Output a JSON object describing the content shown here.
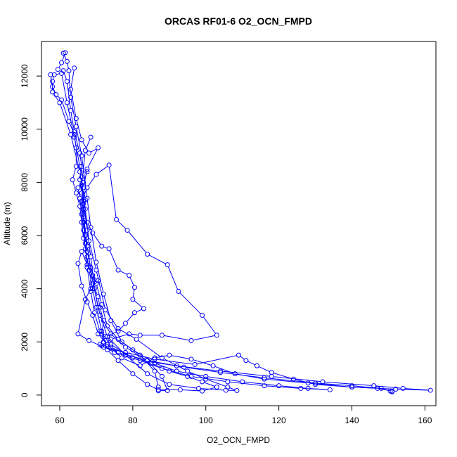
{
  "chart_data": {
    "type": "line",
    "title": "ORCAS RF01-6 O2_OCN_FMPD",
    "xlabel": "O2_OCN_FMPD",
    "ylabel": "Altitude (m)",
    "xlim": [
      55,
      163
    ],
    "ylim": [
      -400,
      13300
    ],
    "xticks": [
      60,
      80,
      100,
      120,
      140,
      160
    ],
    "yticks": [
      0,
      2000,
      4000,
      6000,
      8000,
      10000,
      12000
    ],
    "grid": false,
    "marker": "open-circle",
    "color": "#0000ff",
    "series": [
      {
        "points": [
          [
            59.5,
            12250
          ],
          [
            60.5,
            12500
          ],
          [
            61.5,
            12880
          ],
          [
            61.0,
            12860
          ],
          [
            62.0,
            12550
          ],
          [
            62.5,
            12200
          ],
          [
            63.0,
            11200
          ],
          [
            64.5,
            10100
          ],
          [
            66.0,
            9000
          ],
          [
            67.5,
            7400
          ],
          [
            68.5,
            6300
          ],
          [
            70.0,
            5000
          ],
          [
            72.0,
            3800
          ],
          [
            74.0,
            2800
          ],
          [
            77.0,
            2000
          ],
          [
            82.0,
            1500
          ],
          [
            86.0,
            900
          ],
          [
            87.0,
            300
          ],
          [
            87.0,
            160
          ],
          [
            89.5,
            170
          ],
          [
            88.0,
            700
          ],
          [
            84.0,
            1300
          ],
          [
            78.0,
            1800
          ],
          [
            74.0,
            2300
          ],
          [
            71.0,
            3000
          ],
          [
            69.5,
            4000
          ],
          [
            68.5,
            5200
          ],
          [
            67.5,
            6200
          ],
          [
            66.5,
            7300
          ],
          [
            66.0,
            8200
          ],
          [
            65.5,
            8600
          ],
          [
            64.0,
            9700
          ],
          [
            62.0,
            11000
          ],
          [
            60.5,
            12100
          ],
          [
            58.5,
            12050
          ],
          [
            58.0,
            11800
          ],
          [
            58.0,
            11400
          ],
          [
            60.0,
            11000
          ],
          [
            63.0,
            9800
          ],
          [
            65.5,
            8400
          ],
          [
            67.0,
            7000
          ],
          [
            68.0,
            5800
          ],
          [
            70.0,
            4700
          ],
          [
            72.5,
            3200
          ],
          [
            76.0,
            2500
          ],
          [
            81.0,
            2100
          ],
          [
            88.0,
            1400
          ],
          [
            95.0,
            900
          ],
          [
            100.0,
            600
          ],
          [
            106.0,
            300
          ],
          [
            108.5,
            170
          ],
          [
            105.5,
            180
          ],
          [
            98.0,
            250
          ],
          [
            90.0,
            400
          ],
          [
            84.0,
            800
          ],
          [
            78.0,
            1500
          ],
          [
            73.0,
            2200
          ],
          [
            70.5,
            3300
          ],
          [
            69.0,
            4300
          ],
          [
            67.5,
            5600
          ],
          [
            66.5,
            6800
          ],
          [
            66.0,
            7900
          ],
          [
            67.0,
            9200
          ],
          [
            68.5,
            9700
          ]
        ]
      },
      {
        "points": [
          [
            61.0,
            12200
          ],
          [
            62.0,
            11800
          ],
          [
            63.0,
            10700
          ],
          [
            64.0,
            9900
          ],
          [
            65.5,
            9100
          ],
          [
            66.0,
            8600
          ],
          [
            65.5,
            8100
          ],
          [
            66.0,
            7600
          ],
          [
            66.5,
            7200
          ],
          [
            66.5,
            6700
          ],
          [
            67.0,
            6000
          ],
          [
            67.5,
            5400
          ],
          [
            68.5,
            4800
          ],
          [
            70.0,
            4200
          ],
          [
            71.5,
            3400
          ],
          [
            73.0,
            2600
          ],
          [
            76.0,
            2100
          ],
          [
            80.0,
            1700
          ],
          [
            86.0,
            1200
          ],
          [
            92.0,
            900
          ],
          [
            100.0,
            700
          ],
          [
            110.0,
            500
          ],
          [
            120.0,
            350
          ],
          [
            128.0,
            250
          ],
          [
            134.0,
            200
          ],
          [
            126.0,
            250
          ],
          [
            116.0,
            350
          ],
          [
            106.0,
            500
          ],
          [
            96.0,
            700
          ],
          [
            88.0,
            1000
          ],
          [
            80.0,
            1400
          ],
          [
            74.0,
            1900
          ],
          [
            71.0,
            2400
          ],
          [
            69.5,
            3100
          ],
          [
            68.5,
            3900
          ],
          [
            67.5,
            4800
          ],
          [
            67.0,
            5700
          ],
          [
            66.5,
            6500
          ],
          [
            66.0,
            7300
          ],
          [
            67.5,
            7800
          ],
          [
            70.0,
            8300
          ],
          [
            73.5,
            8650
          ],
          [
            75.5,
            6600
          ],
          [
            78.5,
            6200
          ],
          [
            84.0,
            5300
          ],
          [
            89.5,
            4900
          ],
          [
            92.5,
            3900
          ],
          [
            99.0,
            3000
          ],
          [
            103.0,
            2250
          ],
          [
            96.0,
            2050
          ],
          [
            88.0,
            2250
          ],
          [
            82.0,
            2250
          ],
          [
            79.0,
            2300
          ],
          [
            74.0,
            2100
          ],
          [
            71.5,
            1850
          ],
          [
            76.0,
            1600
          ],
          [
            84.0,
            1300
          ],
          [
            94.0,
            1050
          ],
          [
            104.0,
            850
          ],
          [
            116.0,
            650
          ],
          [
            130.0,
            450
          ],
          [
            140.0,
            350
          ],
          [
            148.0,
            250
          ],
          [
            150.5,
            150
          ],
          [
            151.0,
            120
          ]
        ]
      },
      {
        "points": [
          [
            64.0,
            12300
          ],
          [
            63.0,
            11500
          ],
          [
            64.5,
            10400
          ],
          [
            66.0,
            9600
          ],
          [
            68.0,
            9100
          ],
          [
            70.5,
            9300
          ],
          [
            67.5,
            8500
          ],
          [
            66.5,
            7800
          ],
          [
            67.0,
            7350
          ],
          [
            66.5,
            7000
          ],
          [
            67.5,
            6500
          ],
          [
            69.0,
            6100
          ],
          [
            71.5,
            5600
          ],
          [
            73.5,
            5500
          ],
          [
            76.0,
            4700
          ],
          [
            79.0,
            4500
          ],
          [
            80.5,
            4050
          ],
          [
            80.0,
            3600
          ],
          [
            83.0,
            3250
          ],
          [
            80.5,
            3100
          ],
          [
            78.0,
            2700
          ],
          [
            76.0,
            2400
          ],
          [
            72.5,
            2200
          ],
          [
            71.0,
            1900
          ],
          [
            75.0,
            1600
          ],
          [
            82.0,
            1300
          ],
          [
            92.0,
            1100
          ],
          [
            104.0,
            900
          ],
          [
            118.0,
            700
          ],
          [
            132.0,
            500
          ],
          [
            146.0,
            350
          ],
          [
            154.0,
            250
          ],
          [
            161.5,
            180
          ],
          [
            152.0,
            220
          ],
          [
            140.0,
            300
          ],
          [
            128.0,
            450
          ],
          [
            116.0,
            600
          ],
          [
            108.0,
            800
          ],
          [
            102.0,
            1100
          ],
          [
            96.0,
            1350
          ],
          [
            90.0,
            1500
          ],
          [
            86.0,
            1400
          ],
          [
            82.0,
            1100
          ],
          [
            77.0,
            1400
          ],
          [
            73.0,
            1900
          ],
          [
            70.5,
            2300
          ],
          [
            69.0,
            3000
          ],
          [
            67.5,
            3500
          ],
          [
            66.0,
            4100
          ],
          [
            65.0,
            4950
          ],
          [
            66.0,
            5400
          ],
          [
            67.5,
            4900
          ],
          [
            69.0,
            4500
          ],
          [
            70.5,
            4300
          ],
          [
            68.5,
            4000
          ],
          [
            67.0,
            3600
          ],
          [
            65.0,
            2300
          ],
          [
            68.0,
            2050
          ],
          [
            72.0,
            1800
          ],
          [
            78.0,
            1600
          ],
          [
            86.0,
            1350
          ],
          [
            97.0,
            1150
          ],
          [
            109.0,
            1500
          ],
          [
            111.0,
            1300
          ],
          [
            114.0,
            1100
          ],
          [
            118.0,
            850
          ],
          [
            124.0,
            600
          ],
          [
            130.0,
            400
          ],
          [
            140.0,
            300
          ],
          [
            147.0,
            250
          ],
          [
            151.0,
            150
          ]
        ]
      },
      {
        "points": [
          [
            57.5,
            12050
          ],
          [
            58.0,
            11600
          ],
          [
            59.0,
            11300
          ],
          [
            60.5,
            11100
          ],
          [
            62.5,
            10300
          ],
          [
            64.0,
            9800
          ],
          [
            64.5,
            9300
          ],
          [
            64.5,
            8600
          ],
          [
            63.5,
            8100
          ],
          [
            64.5,
            7600
          ],
          [
            65.5,
            7100
          ],
          [
            66.0,
            6500
          ],
          [
            66.5,
            5900
          ],
          [
            67.5,
            5200
          ],
          [
            68.0,
            4700
          ],
          [
            69.0,
            4500
          ],
          [
            69.0,
            4200
          ],
          [
            70.5,
            3700
          ],
          [
            71.0,
            3300
          ],
          [
            72.0,
            2800
          ],
          [
            71.5,
            2300
          ],
          [
            72.0,
            2000
          ],
          [
            74.0,
            1800
          ],
          [
            79.0,
            1500
          ],
          [
            85.0,
            1200
          ],
          [
            90.0,
            900
          ],
          [
            95.0,
            700
          ],
          [
            99.0,
            500
          ],
          [
            103.0,
            300
          ],
          [
            99.0,
            150
          ],
          [
            93.0,
            200
          ],
          [
            87.0,
            200
          ],
          [
            84.0,
            400
          ],
          [
            80.0,
            800
          ],
          [
            76.0,
            1300
          ],
          [
            73.0,
            1700
          ],
          [
            71.5,
            2400
          ],
          [
            70.0,
            3300
          ],
          [
            69.0,
            4000
          ],
          [
            68.0,
            4700
          ],
          [
            67.0,
            5500
          ],
          [
            66.5,
            6200
          ],
          [
            66.0,
            6800
          ],
          [
            65.5,
            7400
          ],
          [
            65.0,
            7800
          ],
          [
            66.5,
            8000
          ],
          [
            67.5,
            8400
          ]
        ]
      }
    ]
  }
}
